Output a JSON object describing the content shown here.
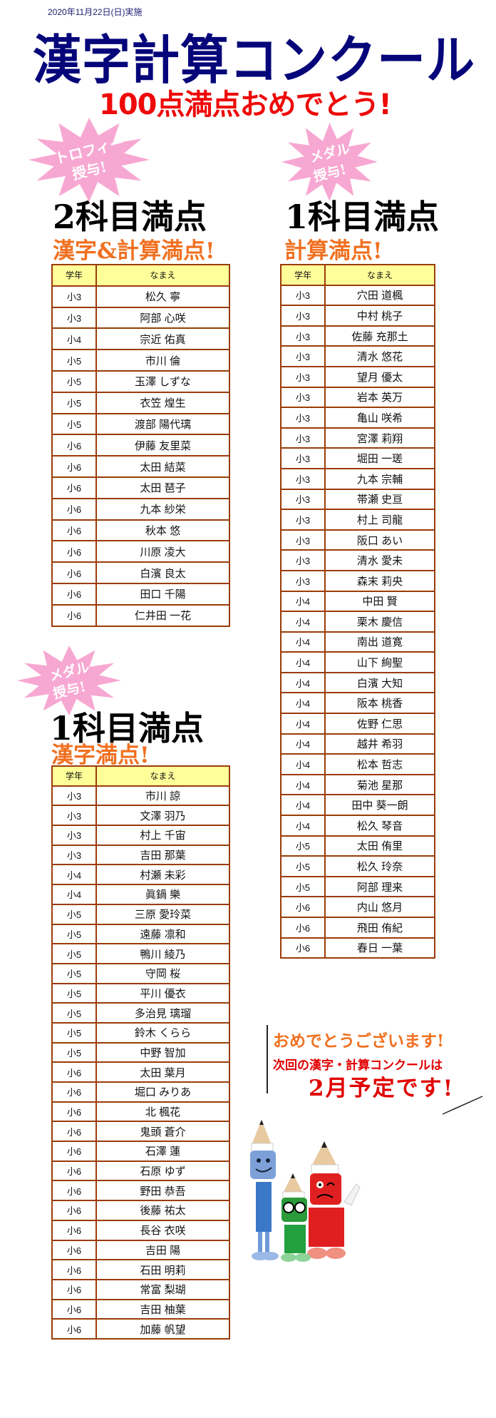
{
  "date": "2020年11月22日(日)実施",
  "title": "漢字計算コンクール",
  "subtitle": "100点満点おめでとう!",
  "colors": {
    "title": "#06067a",
    "subtitle": "#ee0a0a",
    "accent_orange": "#f07020",
    "star_pink": "#f7a8d2",
    "table_border": "#9a3c08",
    "table_header_bg": "#ffff99"
  },
  "sections": [
    {
      "badge_line1": "トロフィー",
      "badge_line2": "授与!",
      "heading": "2科目満点",
      "subheading": "漢字&計算満点!"
    },
    {
      "badge_line1": "メダル",
      "badge_line2": "授与!",
      "heading": "1科目満点",
      "subheading": "計算満点!"
    },
    {
      "badge_line1": "メダル",
      "badge_line2": "授与!",
      "heading": "1科目満点",
      "subheading": "漢字満点!"
    }
  ],
  "table_headers": {
    "grade": "学年",
    "name": "なまえ"
  },
  "tables": [
    {
      "rows": [
        {
          "grade": "小3",
          "name": "松久 寧"
        },
        {
          "grade": "小3",
          "name": "阿部 心咲"
        },
        {
          "grade": "小4",
          "name": "宗近 佑真"
        },
        {
          "grade": "小5",
          "name": "市川 倫"
        },
        {
          "grade": "小5",
          "name": "玉澤 しずな"
        },
        {
          "grade": "小5",
          "name": "衣笠 煌生"
        },
        {
          "grade": "小5",
          "name": "渡部 陽代璃"
        },
        {
          "grade": "小6",
          "name": "伊藤 友里菜"
        },
        {
          "grade": "小6",
          "name": "太田 結菜"
        },
        {
          "grade": "小6",
          "name": "太田 琶子"
        },
        {
          "grade": "小6",
          "name": "九本 紗栄"
        },
        {
          "grade": "小6",
          "name": "秋本 悠"
        },
        {
          "grade": "小6",
          "name": "川原 凌大"
        },
        {
          "grade": "小6",
          "name": "白濱 良太"
        },
        {
          "grade": "小6",
          "name": "田口 千陽"
        },
        {
          "grade": "小6",
          "name": "仁井田 一花"
        }
      ]
    },
    {
      "rows": [
        {
          "grade": "小3",
          "name": "穴田 道楓"
        },
        {
          "grade": "小3",
          "name": "中村 桃子"
        },
        {
          "grade": "小3",
          "name": "佐藤 充那土"
        },
        {
          "grade": "小3",
          "name": "清水 悠花"
        },
        {
          "grade": "小3",
          "name": "望月 優太"
        },
        {
          "grade": "小3",
          "name": "岩本 英万"
        },
        {
          "grade": "小3",
          "name": "亀山 咲希"
        },
        {
          "grade": "小3",
          "name": "宮澤 莉翔"
        },
        {
          "grade": "小3",
          "name": "堀田 一瑳"
        },
        {
          "grade": "小3",
          "name": "九本 宗輔"
        },
        {
          "grade": "小3",
          "name": "帯瀬 史亘"
        },
        {
          "grade": "小3",
          "name": "村上 司龍"
        },
        {
          "grade": "小3",
          "name": "阪口 あい"
        },
        {
          "grade": "小3",
          "name": "清水 愛未"
        },
        {
          "grade": "小3",
          "name": "森末 莉央"
        },
        {
          "grade": "小4",
          "name": "中田 賢"
        },
        {
          "grade": "小4",
          "name": "栗木 慶信"
        },
        {
          "grade": "小4",
          "name": "南出 道寛"
        },
        {
          "grade": "小4",
          "name": "山下 絢聖"
        },
        {
          "grade": "小4",
          "name": "白濱 大知"
        },
        {
          "grade": "小4",
          "name": "阪本 桃香"
        },
        {
          "grade": "小4",
          "name": "佐野 仁思"
        },
        {
          "grade": "小4",
          "name": "越井 希羽"
        },
        {
          "grade": "小4",
          "name": "松本 哲志"
        },
        {
          "grade": "小4",
          "name": "菊池 星那"
        },
        {
          "grade": "小4",
          "name": "田中 葵一朗"
        },
        {
          "grade": "小4",
          "name": "松久 琴音"
        },
        {
          "grade": "小5",
          "name": "太田 侑里"
        },
        {
          "grade": "小5",
          "name": "松久 玲奈"
        },
        {
          "grade": "小5",
          "name": "阿部 理来"
        },
        {
          "grade": "小6",
          "name": "内山 悠月"
        },
        {
          "grade": "小6",
          "name": "飛田 侑紀"
        },
        {
          "grade": "小6",
          "name": "春日 一葉"
        }
      ]
    },
    {
      "rows": [
        {
          "grade": "小3",
          "name": "市川 諒"
        },
        {
          "grade": "小3",
          "name": "文澤 羽乃"
        },
        {
          "grade": "小3",
          "name": "村上 千宙"
        },
        {
          "grade": "小3",
          "name": "吉田 那葉"
        },
        {
          "grade": "小4",
          "name": "村瀬 未彩"
        },
        {
          "grade": "小4",
          "name": "眞鍋 樂"
        },
        {
          "grade": "小5",
          "name": "三原 愛玲菜"
        },
        {
          "grade": "小5",
          "name": "遠藤 凛和"
        },
        {
          "grade": "小5",
          "name": "鴨川 綾乃"
        },
        {
          "grade": "小5",
          "name": "守岡 桜"
        },
        {
          "grade": "小5",
          "name": "平川 優衣"
        },
        {
          "grade": "小5",
          "name": "多治見 璃瑠"
        },
        {
          "grade": "小5",
          "name": "鈴木 くらら"
        },
        {
          "grade": "小5",
          "name": "中野 智加"
        },
        {
          "grade": "小6",
          "name": "太田 葉月"
        },
        {
          "grade": "小6",
          "name": "堀口 みりあ"
        },
        {
          "grade": "小6",
          "name": "北 楓花"
        },
        {
          "grade": "小6",
          "name": "鬼頭 蒼介"
        },
        {
          "grade": "小6",
          "name": "石澤 蓮"
        },
        {
          "grade": "小6",
          "name": "石原 ゆず"
        },
        {
          "grade": "小6",
          "name": "野田 恭吾"
        },
        {
          "grade": "小6",
          "name": "後藤 祐太"
        },
        {
          "grade": "小6",
          "name": "長谷 衣咲"
        },
        {
          "grade": "小6",
          "name": "吉田 陽"
        },
        {
          "grade": "小6",
          "name": "石田 明莉"
        },
        {
          "grade": "小6",
          "name": "常富 梨瑚"
        },
        {
          "grade": "小6",
          "name": "吉田 柚葉"
        },
        {
          "grade": "小6",
          "name": "加藤 帆望"
        }
      ]
    }
  ],
  "message": {
    "line1": "おめでとうございます!",
    "line2": "次回の漢字・計算コンクールは",
    "line3": "2月予定です!"
  },
  "illustration": "pencil-mascot-characters"
}
